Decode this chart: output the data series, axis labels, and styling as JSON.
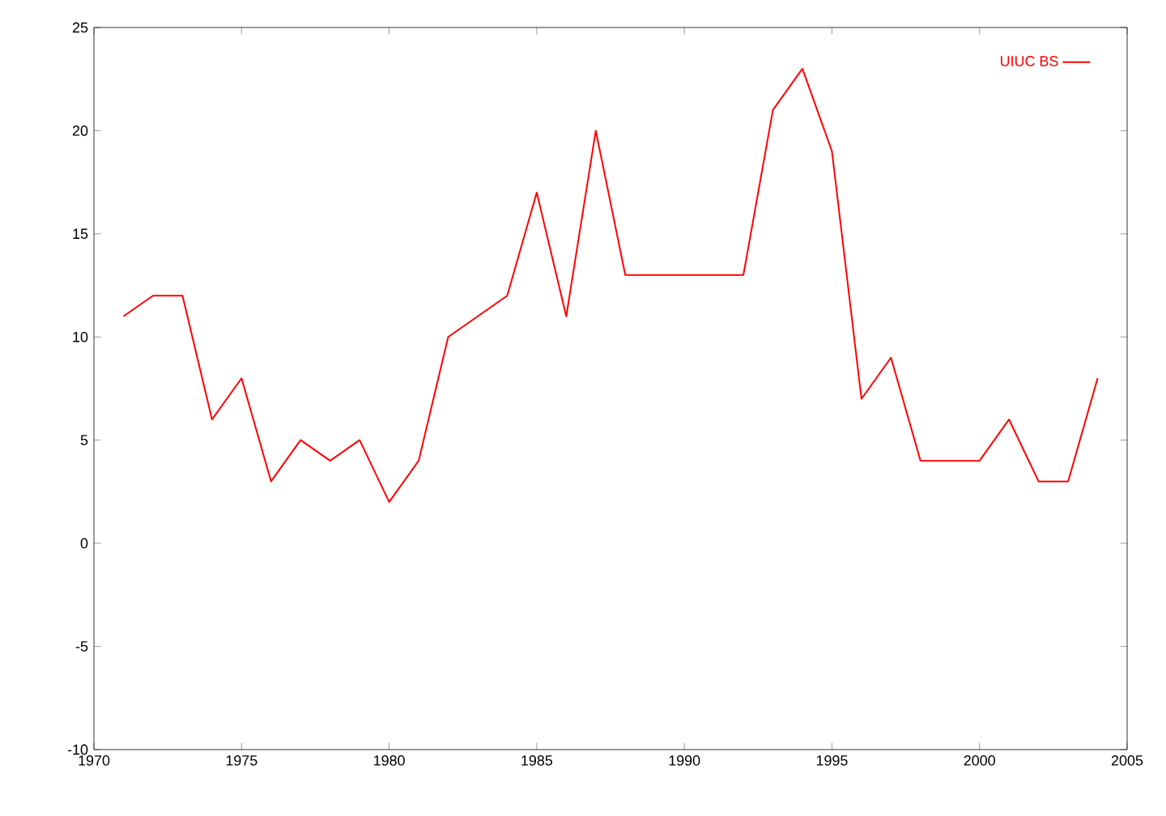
{
  "chart_data": {
    "type": "line",
    "x": [
      1971,
      1972,
      1973,
      1974,
      1975,
      1976,
      1977,
      1978,
      1979,
      1980,
      1981,
      1982,
      1983,
      1984,
      1985,
      1986,
      1987,
      1988,
      1989,
      1990,
      1991,
      1992,
      1993,
      1994,
      1995,
      1996,
      1997,
      1998,
      1999,
      2000,
      2001,
      2002,
      2003,
      2004
    ],
    "series": [
      {
        "name": "UIUC BS",
        "color": "#ff0000",
        "values": [
          11,
          12,
          12,
          6,
          8,
          3,
          5,
          4,
          5,
          2,
          4,
          10,
          11,
          12,
          17,
          11,
          20,
          13,
          13,
          13,
          13,
          13,
          21,
          23,
          19,
          7,
          9,
          4,
          4,
          4,
          6,
          3,
          3,
          8
        ]
      }
    ],
    "xlim": [
      1970,
      2005
    ],
    "ylim": [
      -10,
      25
    ],
    "xticks": [
      1970,
      1975,
      1980,
      1985,
      1990,
      1995,
      2000,
      2005
    ],
    "yticks": [
      -10,
      -5,
      0,
      5,
      10,
      15,
      20,
      25
    ],
    "legend": "top right",
    "grid": false,
    "marker": "none",
    "line_style": "solid"
  }
}
